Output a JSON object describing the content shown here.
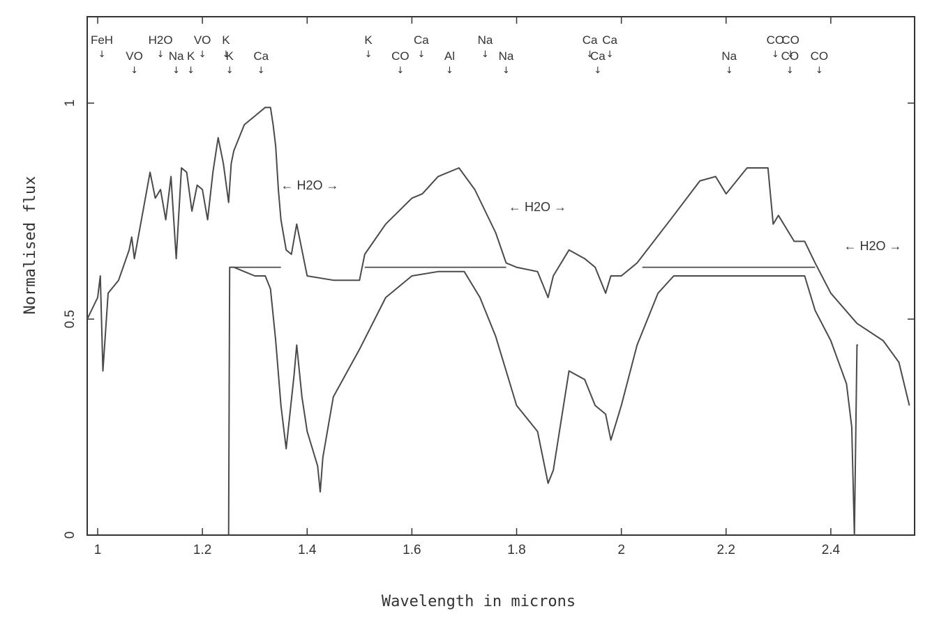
{
  "chart_data": {
    "type": "line",
    "xlabel": "Wavelength in microns",
    "ylabel": "Normalised flux",
    "xlim": [
      0.98,
      2.56
    ],
    "ylim": [
      0,
      1.2
    ],
    "x_ticks": [
      1,
      1.2,
      1.4,
      1.6,
      1.8,
      2,
      2.2,
      2.4
    ],
    "x_tick_labels": [
      "1",
      "1.2",
      "1.4",
      "1.6",
      "1.8",
      "2",
      "2.2",
      "2.4"
    ],
    "y_ticks": [
      0,
      0.5,
      1
    ],
    "y_tick_labels": [
      "0",
      "0.5",
      "1"
    ],
    "grid": false,
    "series": [
      {
        "color": "#4a4a4a",
        "x": [
          0.98,
          1.0,
          1.005,
          1.01,
          1.02,
          1.04,
          1.06,
          1.065,
          1.07,
          1.1,
          1.11,
          1.12,
          1.13,
          1.14,
          1.15,
          1.16,
          1.17,
          1.18,
          1.19,
          1.2,
          1.21,
          1.22,
          1.23,
          1.24,
          1.25,
          1.255,
          1.26,
          1.28,
          1.3,
          1.32,
          1.33,
          1.335,
          1.34,
          1.345,
          1.35,
          1.36,
          1.37,
          1.38,
          1.4,
          1.45,
          1.5,
          1.51,
          1.55,
          1.6,
          1.62,
          1.65,
          1.69,
          1.72,
          1.76,
          1.78,
          1.8,
          1.84,
          1.86,
          1.87,
          1.9,
          1.93,
          1.95,
          1.97,
          1.98,
          2.0,
          2.03,
          2.1,
          2.15,
          2.18,
          2.2,
          2.24,
          2.28,
          2.29,
          2.3,
          2.33,
          2.35,
          2.37,
          2.4,
          2.45,
          2.5,
          2.53,
          2.55
        ],
        "y": [
          0.5,
          0.55,
          0.6,
          0.38,
          0.56,
          0.59,
          0.66,
          0.69,
          0.64,
          0.84,
          0.78,
          0.8,
          0.73,
          0.83,
          0.64,
          0.85,
          0.84,
          0.75,
          0.81,
          0.8,
          0.73,
          0.84,
          0.92,
          0.86,
          0.77,
          0.86,
          0.89,
          0.95,
          0.97,
          0.99,
          0.99,
          0.95,
          0.9,
          0.8,
          0.73,
          0.66,
          0.65,
          0.72,
          0.6,
          0.59,
          0.59,
          0.65,
          0.72,
          0.78,
          0.79,
          0.83,
          0.85,
          0.8,
          0.7,
          0.63,
          0.62,
          0.61,
          0.55,
          0.6,
          0.66,
          0.64,
          0.62,
          0.56,
          0.6,
          0.6,
          0.63,
          0.74,
          0.82,
          0.83,
          0.79,
          0.85,
          0.85,
          0.72,
          0.74,
          0.68,
          0.68,
          0.63,
          0.56,
          0.49,
          0.45,
          0.4,
          0.3
        ]
      },
      {
        "color": "#4a4a4a",
        "x": [
          1.25,
          1.252,
          1.26,
          1.28,
          1.3,
          1.32,
          1.33,
          1.34,
          1.35,
          1.36,
          1.375,
          1.38,
          1.39,
          1.4,
          1.41,
          1.42,
          1.425,
          1.43,
          1.45,
          1.5,
          1.55,
          1.6,
          1.65,
          1.7,
          1.73,
          1.76,
          1.8,
          1.84,
          1.86,
          1.87,
          1.9,
          1.93,
          1.95,
          1.97,
          1.98,
          2.0,
          2.03,
          2.07,
          2.1,
          2.2,
          2.3,
          2.35,
          2.37,
          2.4,
          2.43,
          2.44,
          2.445,
          2.45,
          2.452
        ],
        "y": [
          0,
          0.62,
          0.62,
          0.61,
          0.6,
          0.6,
          0.57,
          0.45,
          0.3,
          0.2,
          0.37,
          0.44,
          0.32,
          0.24,
          0.2,
          0.16,
          0.1,
          0.18,
          0.32,
          0.43,
          0.55,
          0.6,
          0.61,
          0.61,
          0.55,
          0.46,
          0.3,
          0.24,
          0.12,
          0.15,
          0.38,
          0.36,
          0.3,
          0.28,
          0.22,
          0.3,
          0.44,
          0.56,
          0.6,
          0.6,
          0.6,
          0.6,
          0.52,
          0.45,
          0.35,
          0.25,
          0.0,
          0.44,
          0.44
        ]
      },
      {
        "color": "#4a4a4a",
        "x": [
          1.255,
          1.265,
          1.35
        ],
        "y": [
          0.62,
          0.62,
          0.62
        ]
      },
      {
        "color": "#4a4a4a",
        "x": [
          1.51,
          1.78
        ],
        "y": [
          0.62,
          0.62
        ]
      },
      {
        "color": "#4a4a4a",
        "x": [
          2.04,
          2.37
        ],
        "y": [
          0.62,
          0.62
        ]
      }
    ],
    "annotations": {
      "features": [
        {
          "label": "FeH",
          "x": 1.008,
          "row": 1
        },
        {
          "label": "VO",
          "x": 1.07,
          "row": 2
        },
        {
          "label": "H2O",
          "x": 1.12,
          "row": 1
        },
        {
          "label": "Na",
          "x": 1.15,
          "row": 2
        },
        {
          "label": "K",
          "x": 1.178,
          "row": 2
        },
        {
          "label": "VO",
          "x": 1.2,
          "row": 1
        },
        {
          "label": "K",
          "x": 1.245,
          "row": 1
        },
        {
          "label": "K",
          "x": 1.252,
          "row": 2
        },
        {
          "label": "Ca",
          "x": 1.312,
          "row": 2
        },
        {
          "label": "K",
          "x": 1.517,
          "row": 1
        },
        {
          "label": "CO",
          "x": 1.578,
          "row": 2
        },
        {
          "label": "Ca",
          "x": 1.618,
          "row": 1
        },
        {
          "label": "Al",
          "x": 1.672,
          "row": 2
        },
        {
          "label": "Na",
          "x": 1.74,
          "row": 1
        },
        {
          "label": "Na",
          "x": 1.78,
          "row": 2
        },
        {
          "label": "Ca",
          "x": 1.94,
          "row": 1
        },
        {
          "label": "Ca",
          "x": 1.978,
          "row": 1
        },
        {
          "label": "Ca",
          "x": 1.955,
          "row": 2
        },
        {
          "label": "Na",
          "x": 2.206,
          "row": 2
        },
        {
          "label": "CO",
          "x": 2.294,
          "row": 1
        },
        {
          "label": "CO",
          "x": 2.323,
          "row": 1
        },
        {
          "label": "CO",
          "x": 2.322,
          "row": 2
        },
        {
          "label": "CO",
          "x": 2.378,
          "row": 2
        }
      ],
      "bands": [
        {
          "label": "← H2O →",
          "x": 1.405,
          "y": 0.8
        },
        {
          "label": "← H2O →",
          "x": 1.84,
          "y": 0.75
        },
        {
          "label": "← H2O →",
          "x": 2.48,
          "y": 0.66
        }
      ]
    }
  }
}
